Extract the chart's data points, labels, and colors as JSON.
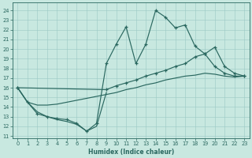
{
  "bg_color": "#c8e8e0",
  "line_color": "#2a6860",
  "xlabel": "Humidex (Indice chaleur)",
  "xlim": [
    -0.5,
    23.5
  ],
  "ylim": [
    10.8,
    24.8
  ],
  "yticks": [
    11,
    12,
    13,
    14,
    15,
    16,
    17,
    18,
    19,
    20,
    21,
    22,
    23,
    24
  ],
  "xticks": [
    0,
    1,
    2,
    3,
    4,
    5,
    6,
    7,
    8,
    9,
    10,
    11,
    12,
    13,
    14,
    15,
    16,
    17,
    18,
    19,
    20,
    21,
    22,
    23
  ],
  "line_peaked_x": [
    0,
    1,
    2,
    3,
    4,
    5,
    6,
    7,
    8,
    9,
    10,
    11,
    12,
    13,
    14,
    15,
    16,
    17,
    18,
    19,
    20,
    21,
    22,
    23
  ],
  "line_peaked_y": [
    16.0,
    14.5,
    13.3,
    13.0,
    12.8,
    12.7,
    12.3,
    11.5,
    12.3,
    18.5,
    20.5,
    22.3,
    18.5,
    20.5,
    24.0,
    23.3,
    22.2,
    22.5,
    20.3,
    19.5,
    18.2,
    17.5,
    17.2,
    17.2
  ],
  "line_upper_x": [
    0,
    9,
    10,
    11,
    12,
    13,
    14,
    15,
    16,
    17,
    18,
    19,
    20,
    21,
    22,
    23
  ],
  "line_upper_y": [
    16.0,
    15.8,
    16.2,
    16.5,
    16.8,
    17.2,
    17.5,
    17.8,
    18.2,
    18.5,
    19.2,
    19.5,
    20.2,
    18.2,
    17.5,
    17.2
  ],
  "line_mid_x": [
    0,
    1,
    2,
    3,
    4,
    5,
    6,
    7,
    8,
    9,
    10,
    11,
    12,
    13,
    14,
    15,
    16,
    17,
    18,
    19,
    20,
    21,
    22,
    23
  ],
  "line_mid_y": [
    16.0,
    14.5,
    14.2,
    14.2,
    14.3,
    14.5,
    14.7,
    14.9,
    15.1,
    15.3,
    15.5,
    15.8,
    16.0,
    16.3,
    16.5,
    16.8,
    17.0,
    17.2,
    17.3,
    17.5,
    17.4,
    17.2,
    17.1,
    17.2
  ],
  "line_dip_x": [
    0,
    1,
    2,
    3,
    4,
    5,
    6,
    7,
    8,
    9
  ],
  "line_dip_y": [
    16.0,
    14.5,
    13.5,
    13.0,
    12.7,
    12.5,
    12.2,
    11.5,
    12.0,
    15.5
  ]
}
